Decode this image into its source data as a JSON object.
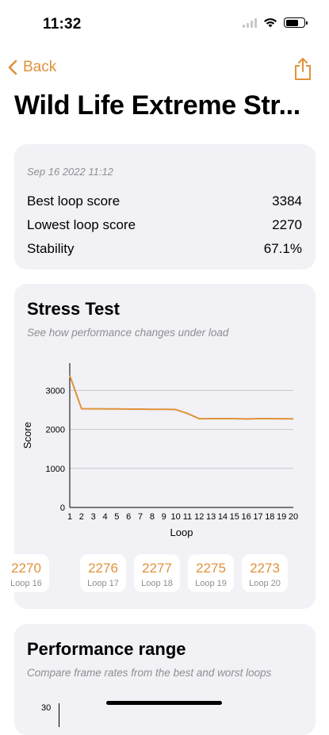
{
  "status": {
    "time": "11:32"
  },
  "nav": {
    "back_label": "Back"
  },
  "title": "Wild Life Extreme Str...",
  "summary": {
    "date": "Sep 16 2022 11:12",
    "rows": [
      {
        "label": "Best loop score",
        "value": "3384"
      },
      {
        "label": "Lowest loop score",
        "value": "2270"
      },
      {
        "label": "Stability",
        "value": "67.1%"
      }
    ]
  },
  "stress_test": {
    "title": "Stress Test",
    "subtitle": "See how performance changes under load",
    "loops": [
      {
        "score": "2270",
        "label": "Loop 16"
      },
      {
        "score": "2276",
        "label": "Loop 17"
      },
      {
        "score": "2277",
        "label": "Loop 18"
      },
      {
        "score": "2275",
        "label": "Loop 19"
      },
      {
        "score": "2273",
        "label": "Loop 20"
      }
    ]
  },
  "performance_range": {
    "title": "Performance range",
    "subtitle": "Compare frame rates from the best and worst loops",
    "axis_top_tick": "30"
  },
  "colors": {
    "accent": "#e0923a",
    "card_bg": "#f1f1f6",
    "secondary_text": "#8e8e93"
  },
  "chart_data": {
    "type": "line",
    "xlabel": "Loop",
    "ylabel": "Score",
    "x": [
      1,
      2,
      3,
      4,
      5,
      6,
      7,
      8,
      9,
      10,
      11,
      12,
      13,
      14,
      15,
      16,
      17,
      18,
      19,
      20
    ],
    "series": [
      {
        "values": [
          3384,
          2530,
          2528,
          2527,
          2525,
          2520,
          2520,
          2517,
          2515,
          2510,
          2410,
          2275,
          2278,
          2278,
          2277,
          2270,
          2276,
          2277,
          2275,
          2273
        ]
      }
    ],
    "yticks": [
      0,
      1000,
      2000,
      3000
    ],
    "ylim": [
      0,
      3700
    ],
    "xlim": [
      1,
      20
    ],
    "grid": true
  }
}
